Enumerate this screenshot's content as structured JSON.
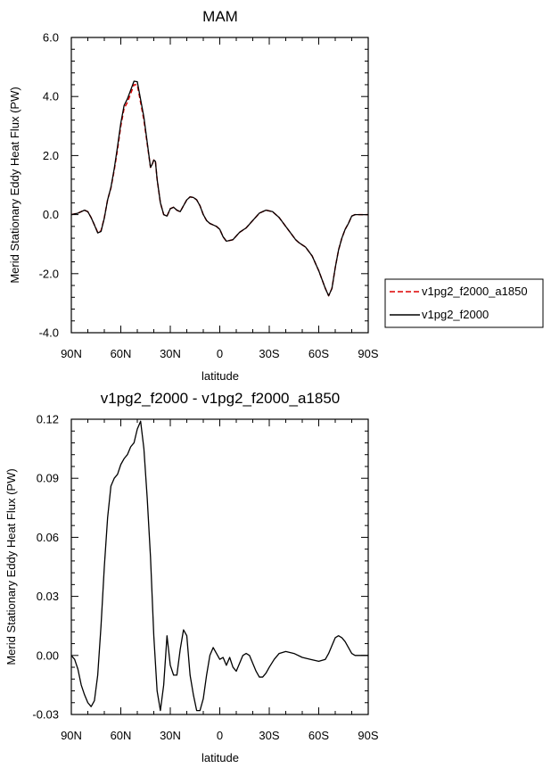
{
  "chart_data": [
    {
      "type": "line",
      "title": "MAM",
      "xlabel": "latitude",
      "ylabel": "Merid Stationary Eddy Heat Flux (PW)",
      "xlim": [
        90,
        -90
      ],
      "ylim": [
        -4.0,
        6.0
      ],
      "x_ticks": [
        {
          "value": 90,
          "label": "90N"
        },
        {
          "value": 60,
          "label": "60N"
        },
        {
          "value": 30,
          "label": "30N"
        },
        {
          "value": 0,
          "label": "0"
        },
        {
          "value": -30,
          "label": "30S"
        },
        {
          "value": -60,
          "label": "60S"
        },
        {
          "value": -90,
          "label": "90S"
        }
      ],
      "y_ticks": [
        {
          "value": 6,
          "label": "6.0"
        },
        {
          "value": 4,
          "label": "4.0"
        },
        {
          "value": 2,
          "label": "2.0"
        },
        {
          "value": 0,
          "label": "0.0"
        },
        {
          "value": -2,
          "label": "-2.0"
        },
        {
          "value": -4,
          "label": "-4.0"
        }
      ],
      "legend": [
        "v1pg2_f2000_a1850",
        "v1pg2_f2000"
      ],
      "legend_position": "right",
      "x": [
        90,
        86,
        82,
        80,
        78,
        76,
        74,
        72,
        70,
        68,
        66,
        64,
        62,
        60,
        58,
        56,
        54,
        52,
        50,
        48,
        46,
        44,
        42,
        41,
        40,
        39,
        38,
        36,
        34,
        32,
        30,
        28,
        26,
        24,
        22,
        20,
        18,
        16,
        14,
        12,
        10,
        8,
        6,
        4,
        2,
        0,
        -2,
        -4,
        -8,
        -12,
        -16,
        -20,
        -24,
        -28,
        -32,
        -36,
        -40,
        -44,
        -46,
        -48,
        -52,
        -56,
        -60,
        -64,
        -66,
        -68,
        -70,
        -72,
        -74,
        -76,
        -78,
        -80,
        -82,
        -84,
        -86,
        -88,
        -90
      ],
      "series": [
        {
          "name": "v1pg2_f2000_a1850",
          "color": "#dd0000",
          "dash": true,
          "values": [
            0.0,
            0.05,
            0.15,
            0.1,
            -0.1,
            -0.35,
            -0.6,
            -0.55,
            -0.1,
            0.5,
            0.9,
            1.5,
            2.2,
            3.0,
            3.6,
            3.8,
            4.1,
            4.4,
            4.4,
            3.8,
            3.2,
            2.4,
            1.6,
            1.7,
            1.85,
            1.8,
            1.2,
            0.4,
            0.0,
            -0.05,
            0.2,
            0.25,
            0.15,
            0.1,
            0.3,
            0.5,
            0.6,
            0.58,
            0.5,
            0.3,
            0.0,
            -0.2,
            -0.3,
            -0.35,
            -0.4,
            -0.5,
            -0.75,
            -0.9,
            -0.85,
            -0.6,
            -0.45,
            -0.2,
            0.05,
            0.15,
            0.1,
            -0.1,
            -0.4,
            -0.7,
            -0.85,
            -0.95,
            -1.1,
            -1.4,
            -1.9,
            -2.5,
            -2.75,
            -2.5,
            -1.8,
            -1.2,
            -0.8,
            -0.5,
            -0.3,
            -0.05,
            0.0,
            0.0,
            0.0,
            0.0,
            0.0
          ]
        },
        {
          "name": "v1pg2_f2000",
          "color": "#000000",
          "dash": false,
          "values": [
            0.0,
            0.05,
            0.15,
            0.1,
            -0.1,
            -0.35,
            -0.62,
            -0.57,
            -0.12,
            0.5,
            0.92,
            1.55,
            2.3,
            3.1,
            3.7,
            3.92,
            4.22,
            4.52,
            4.5,
            3.9,
            3.3,
            2.45,
            1.6,
            1.7,
            1.85,
            1.8,
            1.2,
            0.4,
            0.0,
            -0.05,
            0.2,
            0.25,
            0.15,
            0.1,
            0.3,
            0.5,
            0.6,
            0.58,
            0.5,
            0.3,
            0.0,
            -0.2,
            -0.3,
            -0.35,
            -0.4,
            -0.5,
            -0.75,
            -0.9,
            -0.85,
            -0.6,
            -0.45,
            -0.2,
            0.05,
            0.15,
            0.1,
            -0.1,
            -0.4,
            -0.7,
            -0.85,
            -0.95,
            -1.1,
            -1.4,
            -1.9,
            -2.5,
            -2.75,
            -2.5,
            -1.8,
            -1.2,
            -0.8,
            -0.5,
            -0.3,
            -0.05,
            0.0,
            0.0,
            0.0,
            0.0,
            0.0
          ]
        }
      ]
    },
    {
      "type": "line",
      "title": "v1pg2_f2000 - v1pg2_f2000_a1850",
      "xlabel": "latitude",
      "ylabel": "Merid Stationary Eddy Heat Flux (PW)",
      "xlim": [
        90,
        -90
      ],
      "ylim": [
        -0.03,
        0.12
      ],
      "x_ticks": [
        {
          "value": 90,
          "label": "90N"
        },
        {
          "value": 60,
          "label": "60N"
        },
        {
          "value": 30,
          "label": "30N"
        },
        {
          "value": 0,
          "label": "0"
        },
        {
          "value": -30,
          "label": "30S"
        },
        {
          "value": -60,
          "label": "60S"
        },
        {
          "value": -90,
          "label": "90S"
        }
      ],
      "y_ticks": [
        {
          "value": 0.12,
          "label": "0.12"
        },
        {
          "value": 0.09,
          "label": "0.09"
        },
        {
          "value": 0.06,
          "label": "0.06"
        },
        {
          "value": 0.03,
          "label": "0.03"
        },
        {
          "value": 0.0,
          "label": "0.00"
        },
        {
          "value": -0.03,
          "label": "-0.03"
        }
      ],
      "series": [
        {
          "name": "v1pg2_f2000 - v1pg2_f2000_a1850",
          "color": "#000000",
          "dash": false,
          "x": [
            90,
            88,
            86,
            84,
            82,
            80,
            78,
            76,
            74,
            72,
            70,
            68,
            66,
            64,
            62,
            60,
            58,
            56,
            54,
            52,
            50,
            48,
            46,
            44,
            42,
            40,
            38,
            36,
            34,
            32,
            30,
            28,
            26,
            24,
            22,
            20,
            18,
            16,
            14,
            12,
            10,
            8,
            6,
            4,
            2,
            0,
            -2,
            -4,
            -6,
            -8,
            -10,
            -12,
            -14,
            -16,
            -18,
            -20,
            -22,
            -24,
            -26,
            -28,
            -30,
            -33,
            -36,
            -40,
            -45,
            -50,
            -55,
            -60,
            -64,
            -66,
            -68,
            -70,
            -72,
            -74,
            -76,
            -78,
            -80,
            -82,
            -84,
            -86,
            -88,
            -90
          ],
          "values": [
            0.0,
            -0.002,
            -0.007,
            -0.015,
            -0.02,
            -0.024,
            -0.026,
            -0.023,
            -0.01,
            0.015,
            0.045,
            0.07,
            0.086,
            0.09,
            0.092,
            0.097,
            0.1,
            0.102,
            0.106,
            0.108,
            0.115,
            0.119,
            0.105,
            0.08,
            0.05,
            0.01,
            -0.018,
            -0.028,
            -0.015,
            0.01,
            -0.005,
            -0.01,
            -0.01,
            0.003,
            0.013,
            0.01,
            -0.01,
            -0.02,
            -0.028,
            -0.028,
            -0.022,
            -0.01,
            0.0,
            0.004,
            0.001,
            -0.002,
            -0.001,
            -0.005,
            -0.001,
            -0.006,
            -0.008,
            -0.004,
            0.0,
            0.001,
            0.0,
            -0.004,
            -0.008,
            -0.011,
            -0.011,
            -0.009,
            -0.006,
            -0.002,
            0.001,
            0.002,
            0.001,
            -0.001,
            -0.002,
            -0.003,
            -0.002,
            0.001,
            0.005,
            0.009,
            0.01,
            0.009,
            0.007,
            0.004,
            0.001,
            0.0,
            0.0,
            0.0,
            0.0,
            0.0
          ]
        }
      ]
    }
  ]
}
